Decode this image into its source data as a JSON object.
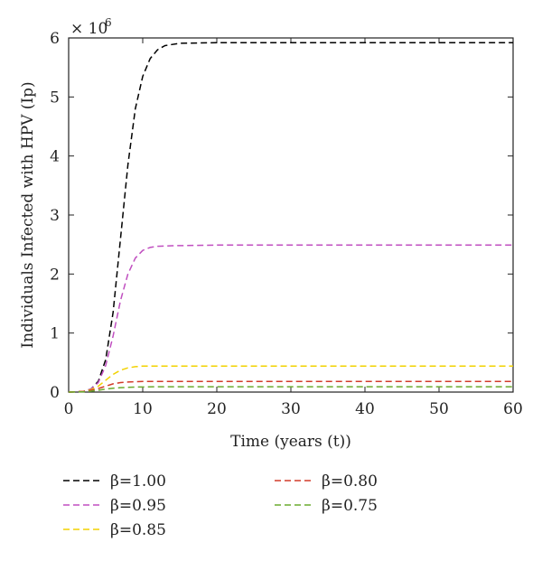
{
  "chart_data": {
    "type": "line",
    "title": "",
    "xlabel": "Time (years (t))",
    "ylabel": "Individuals Infected with HPV (Ip)",
    "y_multiplier_base": "× 10",
    "y_multiplier_exp": "6",
    "xlim": [
      0,
      60
    ],
    "ylim": [
      0,
      6
    ],
    "x_ticks": [
      0,
      10,
      20,
      30,
      40,
      50,
      60
    ],
    "y_ticks": [
      0,
      1,
      2,
      3,
      4,
      5,
      6
    ],
    "grid": false,
    "legend_position": "bottom",
    "series": [
      {
        "name": "β=1.00",
        "color": "#000000",
        "x": [
          0,
          2,
          3,
          4,
          5,
          6,
          7,
          8,
          9,
          10,
          11,
          12,
          13,
          15,
          20,
          30,
          40,
          50,
          60
        ],
        "y": [
          0,
          0.01,
          0.05,
          0.18,
          0.55,
          1.35,
          2.6,
          3.85,
          4.8,
          5.35,
          5.65,
          5.8,
          5.87,
          5.91,
          5.92,
          5.92,
          5.92,
          5.92,
          5.92
        ]
      },
      {
        "name": "β=0.95",
        "color": "#c04fc0",
        "x": [
          0,
          2,
          3,
          4,
          5,
          6,
          7,
          8,
          9,
          10,
          11,
          12,
          14,
          20,
          30,
          40,
          50,
          60
        ],
        "y": [
          0,
          0.01,
          0.05,
          0.16,
          0.45,
          0.95,
          1.55,
          2.0,
          2.27,
          2.4,
          2.45,
          2.47,
          2.48,
          2.49,
          2.49,
          2.49,
          2.49,
          2.49
        ]
      },
      {
        "name": "β=0.85",
        "color": "#f2d200",
        "x": [
          0,
          2,
          3,
          4,
          5,
          6,
          7,
          8,
          9,
          10,
          12,
          15,
          20,
          30,
          40,
          50,
          60
        ],
        "y": [
          0,
          0.01,
          0.04,
          0.1,
          0.2,
          0.3,
          0.37,
          0.41,
          0.43,
          0.44,
          0.44,
          0.44,
          0.44,
          0.44,
          0.44,
          0.44,
          0.44
        ]
      },
      {
        "name": "β=0.80",
        "color": "#d23b2a",
        "x": [
          0,
          2,
          3,
          4,
          5,
          6,
          7,
          8,
          9,
          10,
          12,
          15,
          20,
          30,
          40,
          50,
          60
        ],
        "y": [
          0,
          0.01,
          0.03,
          0.06,
          0.1,
          0.14,
          0.16,
          0.17,
          0.175,
          0.18,
          0.18,
          0.18,
          0.18,
          0.18,
          0.18,
          0.18,
          0.18
        ]
      },
      {
        "name": "β=0.75",
        "color": "#6aab2e",
        "x": [
          0,
          2,
          3,
          4,
          5,
          6,
          7,
          8,
          9,
          10,
          12,
          15,
          20,
          30,
          40,
          50,
          60
        ],
        "y": [
          0,
          0.005,
          0.015,
          0.03,
          0.05,
          0.065,
          0.075,
          0.08,
          0.085,
          0.085,
          0.09,
          0.09,
          0.09,
          0.09,
          0.09,
          0.09,
          0.09
        ]
      }
    ]
  }
}
